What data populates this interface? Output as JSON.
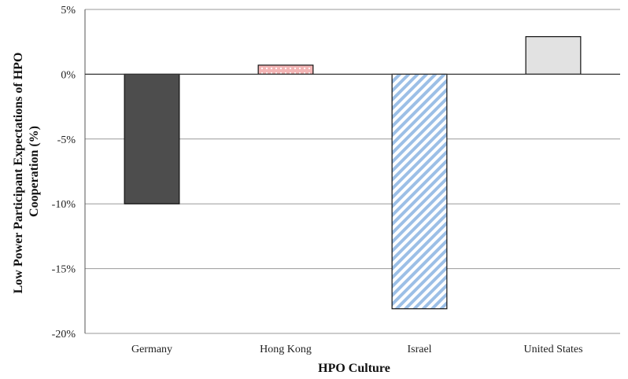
{
  "chart_data": {
    "type": "bar",
    "title": "",
    "xlabel": "HPO Culture",
    "ylabel": "Low Power Participant Expectations of HPO Cooperation (%)",
    "ylabel_lines": [
      "Low Power Participant Expectations of HPO",
      "Cooperation (%)"
    ],
    "categories": [
      "Germany",
      "Hong Kong",
      "Israel",
      "United States"
    ],
    "values": [
      -10.0,
      0.7,
      -18.1,
      2.9
    ],
    "unit": "%",
    "ylim": [
      -20,
      5
    ],
    "yticks": [
      5,
      0,
      -5,
      -10,
      -15,
      -20
    ],
    "ytick_labels": [
      "5%",
      "0%",
      "-5%",
      "-10%",
      "-15%",
      "-20%"
    ],
    "grid": true,
    "legend": "none",
    "bar_styles": [
      {
        "fill": "#4d4d4d",
        "pattern": "solid"
      },
      {
        "fill": "#f3b5b5",
        "pattern": "dots",
        "pattern_color": "#ffffff"
      },
      {
        "fill": "#ffffff",
        "pattern": "diagonal-stripes",
        "pattern_color": "#9cbfe6"
      },
      {
        "fill": "#e2e2e2",
        "pattern": "solid"
      }
    ]
  }
}
